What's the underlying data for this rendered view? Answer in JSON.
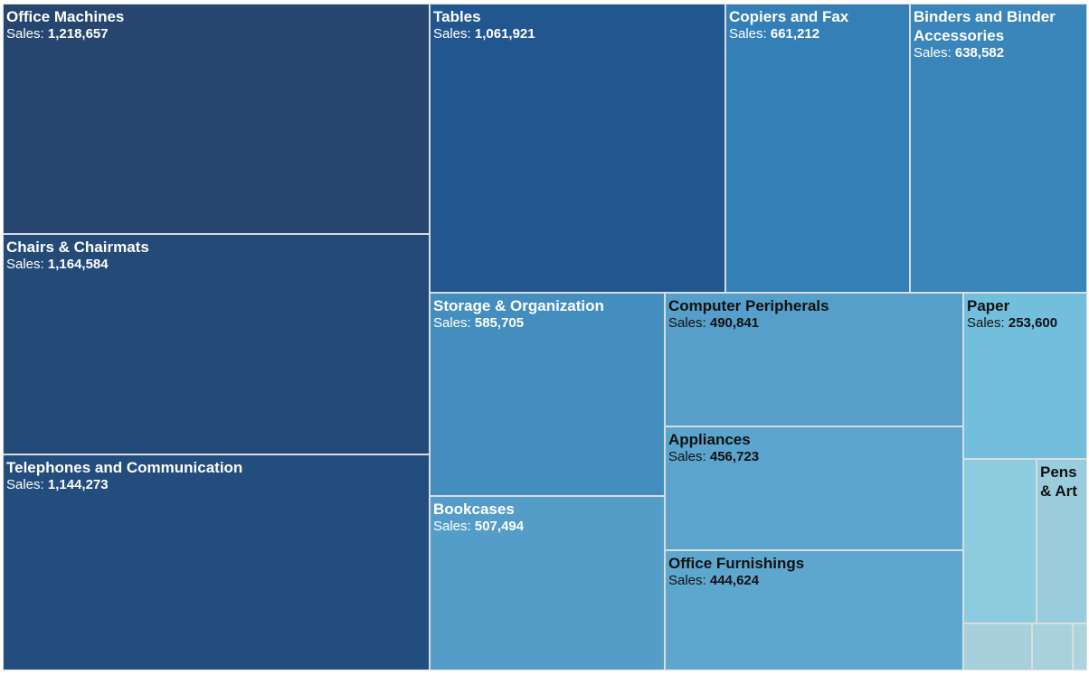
{
  "chart_data": {
    "type": "treemap",
    "measure_label": "Sales:",
    "items": [
      {
        "name": "Office Machines",
        "value": "1,218,657",
        "color": "#26466f"
      },
      {
        "name": "Chairs & Chairmats",
        "value": "1,164,584",
        "color": "#244a78"
      },
      {
        "name": "Telephones and Communication",
        "value": "1,144,273",
        "color": "#234d7c"
      },
      {
        "name": "Tables",
        "value": "1,061,921",
        "color": "#22568f"
      },
      {
        "name": "Copiers and Fax",
        "value": "661,212",
        "color": "#3480b6"
      },
      {
        "name": "Binders and Binder Accessories",
        "value": "638,582",
        "color": "#3a85b9"
      },
      {
        "name": "Storage & Organization",
        "value": "585,705",
        "color": "#438ebf"
      },
      {
        "name": "Bookcases",
        "value": "507,494",
        "color": "#549dc8"
      },
      {
        "name": "Computer Peripherals",
        "value": "490,841",
        "color": "#559fca"
      },
      {
        "name": "Appliances",
        "value": "456,723",
        "color": "#5aa4cd"
      },
      {
        "name": "Office Furnishings",
        "value": "444,624",
        "color": "#5da7cf"
      },
      {
        "name": "Paper",
        "value": "253,600",
        "color": "#73bedd"
      },
      {
        "name": "Pens & Art",
        "value": "",
        "color": "#99cddc"
      },
      {
        "name": "",
        "value": "",
        "color": "#8dcbdf"
      },
      {
        "name": "",
        "value": "",
        "color": "#a7d0dc"
      },
      {
        "name": "",
        "value": "",
        "color": "#a9d1dc"
      },
      {
        "name": "",
        "value": "",
        "color": "#add3dd"
      }
    ]
  }
}
